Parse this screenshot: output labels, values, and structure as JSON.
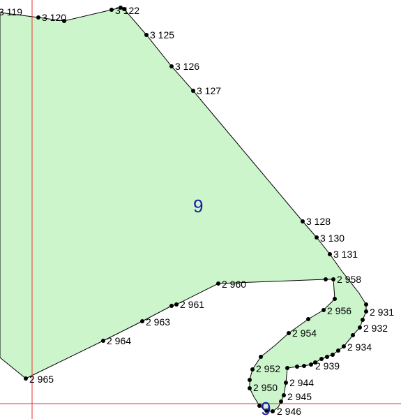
{
  "colors": {
    "parcel_fill": "#ccf5cc",
    "parcel_stroke": "#000000",
    "grid_line": "#e63232",
    "vertex": "#000000",
    "parcel_label": "#1a1aa8"
  },
  "parcels": [
    {
      "label": "9"
    },
    {
      "label": "9"
    }
  ],
  "points": [
    {
      "label": "3 119"
    },
    {
      "label": "3 120"
    },
    {
      "label": "3 122"
    },
    {
      "label": "3 125"
    },
    {
      "label": "3 126"
    },
    {
      "label": "3 127"
    },
    {
      "label": "3 128"
    },
    {
      "label": "3 130"
    },
    {
      "label": "3 131"
    },
    {
      "label": "2 958"
    },
    {
      "label": "2 960"
    },
    {
      "label": "2 961"
    },
    {
      "label": "2 963"
    },
    {
      "label": "2 964"
    },
    {
      "label": "2 965"
    },
    {
      "label": "2 956"
    },
    {
      "label": "2 931"
    },
    {
      "label": "2 932"
    },
    {
      "label": "2 954"
    },
    {
      "label": "2 934"
    },
    {
      "label": "2 939"
    },
    {
      "label": "2 952"
    },
    {
      "label": "2 944"
    },
    {
      "label": "2 950"
    },
    {
      "label": "2 945"
    },
    {
      "label": "2 946"
    }
  ]
}
